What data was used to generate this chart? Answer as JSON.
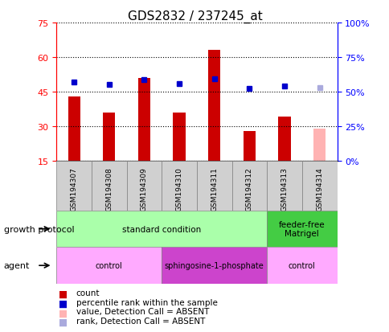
{
  "title": "GDS2832 / 237245_at",
  "samples": [
    "GSM194307",
    "GSM194308",
    "GSM194309",
    "GSM194310",
    "GSM194311",
    "GSM194312",
    "GSM194313",
    "GSM194314"
  ],
  "count_values": [
    43,
    36,
    51,
    36,
    63,
    28,
    34,
    null
  ],
  "count_absent": [
    null,
    null,
    null,
    null,
    null,
    null,
    null,
    29
  ],
  "rank_values": [
    57,
    55,
    58.5,
    56,
    59,
    52,
    54,
    null
  ],
  "rank_absent": [
    null,
    null,
    null,
    null,
    null,
    null,
    null,
    53
  ],
  "ylim_left": [
    15,
    75
  ],
  "ylim_right": [
    0,
    100
  ],
  "yticks_left": [
    15,
    30,
    45,
    60,
    75
  ],
  "yticks_right": [
    0,
    25,
    50,
    75,
    100
  ],
  "yticklabels_right": [
    "0%",
    "25%",
    "50%",
    "75%",
    "100%"
  ],
  "bar_color": "#cc0000",
  "bar_absent_color": "#ffb3b3",
  "rank_color": "#0000cc",
  "rank_absent_color": "#aaaadd",
  "growth_protocol_groups": [
    {
      "label": "standard condition",
      "start": 0,
      "end": 6,
      "color": "#aaffaa"
    },
    {
      "label": "feeder-free\nMatrigel",
      "start": 6,
      "end": 8,
      "color": "#44cc44"
    }
  ],
  "agent_groups": [
    {
      "label": "control",
      "start": 0,
      "end": 3,
      "color": "#ffaaff"
    },
    {
      "label": "sphingosine-1-phosphate",
      "start": 3,
      "end": 6,
      "color": "#cc44cc"
    },
    {
      "label": "control",
      "start": 6,
      "end": 8,
      "color": "#ffaaff"
    }
  ],
  "legend_labels": [
    "count",
    "percentile rank within the sample",
    "value, Detection Call = ABSENT",
    "rank, Detection Call = ABSENT"
  ],
  "legend_colors": [
    "#cc0000",
    "#0000cc",
    "#ffb3b3",
    "#aaaadd"
  ],
  "xlabel_growth": "growth protocol",
  "xlabel_agent": "agent",
  "bar_width": 0.35,
  "sample_bg": "#d0d0d0"
}
